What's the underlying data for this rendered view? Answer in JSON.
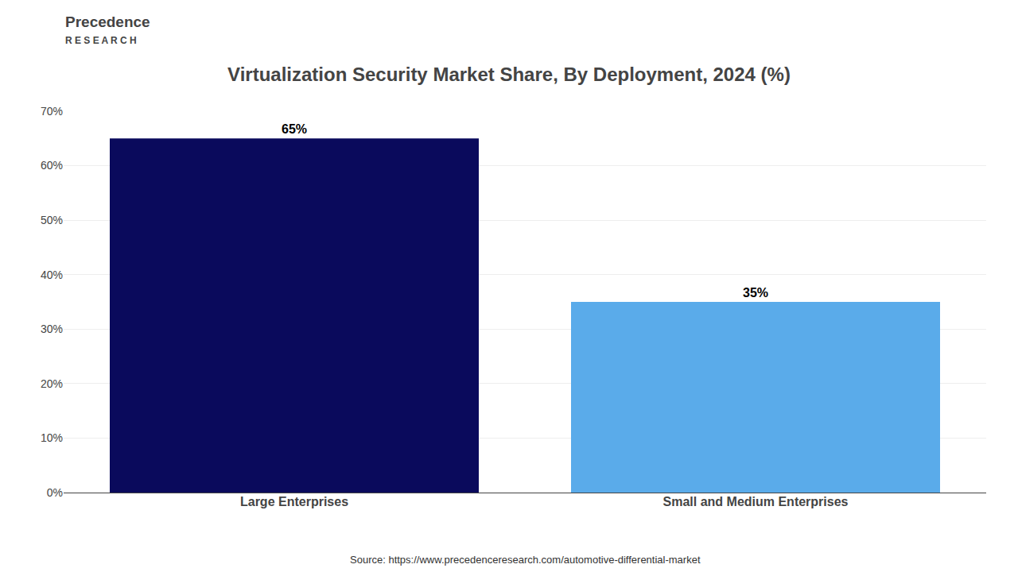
{
  "chart_data": {
    "type": "bar",
    "title": "Virtualization Security Market Share, By Deployment, 2024 (%)",
    "categories": [
      "Large Enterprises",
      "Small and Medium Enterprises"
    ],
    "values": [
      65,
      35
    ],
    "value_labels": [
      "65%",
      "35%"
    ],
    "data_labels": true,
    "colors": [
      "#0a0a5c",
      "#5aabea"
    ],
    "ylim": [
      0,
      70
    ],
    "yticks": [
      {
        "value": 0,
        "label": "0%"
      },
      {
        "value": 10,
        "label": "10%"
      },
      {
        "value": 20,
        "label": "20%"
      },
      {
        "value": 30,
        "label": "30%"
      },
      {
        "value": 40,
        "label": "40%"
      },
      {
        "value": 50,
        "label": "50%"
      },
      {
        "value": 60,
        "label": "60%"
      },
      {
        "value": 70,
        "label": "70%"
      }
    ],
    "grid": true,
    "annotations": [
      "Source: https://www.precedenceresearch.com/automotive-differential-market",
      "Precedence",
      "R E S E A R C H"
    ]
  }
}
